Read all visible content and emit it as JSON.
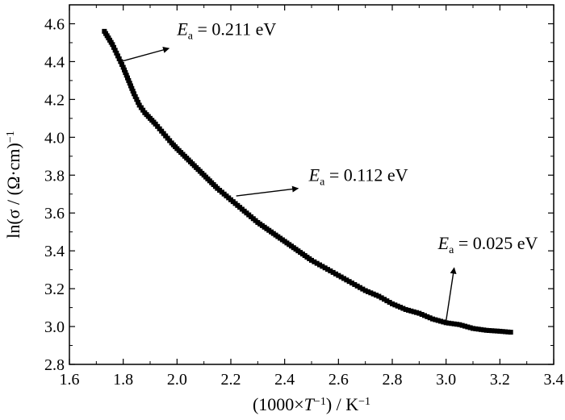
{
  "chart_data": {
    "type": "scatter",
    "title": "",
    "xlabel": "(1000×T⁻¹) / K⁻¹",
    "xlabel_parts": {
      "prefix": "(1000×",
      "var": "T",
      "sup1": "−1",
      "mid": ") / K",
      "sup2": "−1"
    },
    "ylabel": "ln(σ / (Ω·cm)⁻¹)",
    "ylabel_parts": {
      "main": "ln(σ / (Ω·cm)",
      "sup": "−1"
    },
    "xlim": [
      1.6,
      3.4
    ],
    "ylim": [
      2.8,
      4.7
    ],
    "xticks": [
      1.6,
      1.8,
      2.0,
      2.2,
      2.4,
      2.6,
      2.8,
      3.0,
      3.2,
      3.4
    ],
    "xtick_labels": [
      "1.6",
      "1.8",
      "2.0",
      "2.2",
      "2.4",
      "2.6",
      "2.8",
      "3.0",
      "3.2",
      "3.4"
    ],
    "yticks": [
      2.8,
      3.0,
      3.2,
      3.4,
      3.6,
      3.8,
      4.0,
      4.2,
      4.4,
      4.6
    ],
    "ytick_labels": [
      "2.8",
      "3.0",
      "3.2",
      "3.4",
      "3.6",
      "3.8",
      "4.0",
      "4.2",
      "4.4",
      "4.6"
    ],
    "grid": false,
    "marker": "square",
    "marker_color": "#000000",
    "x": [
      1.73,
      1.76,
      1.78,
      1.8,
      1.82,
      1.84,
      1.86,
      1.88,
      1.9,
      1.92,
      1.95,
      1.98,
      2.0,
      2.05,
      2.1,
      2.15,
      2.2,
      2.25,
      2.3,
      2.35,
      2.4,
      2.45,
      2.5,
      2.55,
      2.6,
      2.65,
      2.7,
      2.75,
      2.8,
      2.85,
      2.9,
      2.95,
      3.0,
      3.05,
      3.1,
      3.15,
      3.2,
      3.24
    ],
    "y": [
      4.56,
      4.49,
      4.43,
      4.37,
      4.3,
      4.23,
      4.17,
      4.13,
      4.1,
      4.07,
      4.02,
      3.97,
      3.94,
      3.87,
      3.8,
      3.73,
      3.67,
      3.61,
      3.55,
      3.5,
      3.45,
      3.4,
      3.35,
      3.31,
      3.27,
      3.23,
      3.19,
      3.16,
      3.12,
      3.09,
      3.07,
      3.04,
      3.02,
      3.01,
      2.99,
      2.98,
      2.975,
      2.97
    ],
    "annotations": [
      {
        "label_var": "E",
        "label_sub": "a",
        "text": " = 0.211 eV",
        "arrow_from": [
          1.79,
          4.4
        ],
        "arrow_to": [
          1.97,
          4.47
        ],
        "text_at": [
          2.0,
          4.54
        ]
      },
      {
        "label_var": "E",
        "label_sub": "a",
        "text": " = 0.112 eV",
        "arrow_from": [
          2.22,
          3.69
        ],
        "arrow_to": [
          2.45,
          3.73
        ],
        "text_at": [
          2.49,
          3.77
        ]
      },
      {
        "label_var": "E",
        "label_sub": "a",
        "text": " = 0.025 eV",
        "arrow_from": [
          3.0,
          3.03
        ],
        "arrow_to": [
          3.03,
          3.31
        ],
        "text_at": [
          2.97,
          3.41
        ]
      }
    ]
  }
}
